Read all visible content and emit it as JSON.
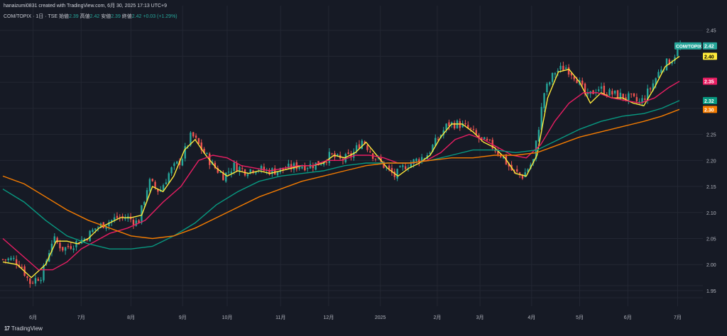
{
  "header": {
    "created_note": "hanaizumi0831 created with TradingView.com, 6月 30, 2025 17:13 UTC+9",
    "symbol_line": "COM/TOPIX · 1日 · TSE",
    "open_label": "始値",
    "open_value": "2.39",
    "high_label": "高値",
    "high_value": "2.42",
    "low_label": "安値",
    "low_value": "2.39",
    "close_label": "終値",
    "close_value": "2.42",
    "change": "+0.03 (+1.29%)"
  },
  "footer": {
    "brand": "TradingView",
    "brand_mark": "17"
  },
  "colors": {
    "background": "#161a25",
    "grid": "#232733",
    "up_candle": "#26a69a",
    "down_candle": "#ef5350",
    "ma_short": "#ffeb3b",
    "ma_medium": "#e91e63",
    "ma_long": "#089981",
    "ma_longest": "#f57c00",
    "price_tag": "#26a69a"
  },
  "chart_data": {
    "type": "candlestick",
    "title": "",
    "ylim": [
      1.92,
      2.47
    ],
    "y_ticks": [
      "2.45",
      "2.40",
      "2.35",
      "2.30",
      "2.25",
      "2.20",
      "2.15",
      "2.10",
      "2.05",
      "2.00",
      "1.95"
    ],
    "y_tick_values": [
      2.45,
      2.4,
      2.35,
      2.3,
      2.25,
      2.2,
      2.15,
      2.1,
      2.05,
      2.0,
      1.95
    ],
    "x_ticks": [
      "6月",
      "7月",
      "8月",
      "9月",
      "10月",
      "11月",
      "12月",
      "2025",
      "2月",
      "3月",
      "4月",
      "5月",
      "6月",
      "7月"
    ],
    "x_tick_days": [
      17,
      44,
      72,
      101,
      126,
      156,
      183,
      212,
      244,
      268,
      297,
      324,
      351,
      379
    ],
    "total_days": 382,
    "close_path": [
      [
        0,
        2.01
      ],
      [
        6,
        2.01
      ],
      [
        10,
        2.0
      ],
      [
        15,
        1.965
      ],
      [
        22,
        1.98
      ],
      [
        28,
        2.05
      ],
      [
        34,
        2.03
      ],
      [
        40,
        2.04
      ],
      [
        46,
        2.05
      ],
      [
        52,
        2.07
      ],
      [
        58,
        2.08
      ],
      [
        64,
        2.09
      ],
      [
        70,
        2.09
      ],
      [
        76,
        2.08
      ],
      [
        82,
        2.16
      ],
      [
        88,
        2.14
      ],
      [
        94,
        2.18
      ],
      [
        100,
        2.2
      ],
      [
        106,
        2.25
      ],
      [
        112,
        2.22
      ],
      [
        118,
        2.19
      ],
      [
        124,
        2.17
      ],
      [
        130,
        2.19
      ],
      [
        136,
        2.18
      ],
      [
        142,
        2.185
      ],
      [
        148,
        2.18
      ],
      [
        154,
        2.18
      ],
      [
        160,
        2.185
      ],
      [
        166,
        2.19
      ],
      [
        172,
        2.19
      ],
      [
        178,
        2.195
      ],
      [
        184,
        2.21
      ],
      [
        190,
        2.2
      ],
      [
        196,
        2.21
      ],
      [
        202,
        2.24
      ],
      [
        208,
        2.21
      ],
      [
        214,
        2.19
      ],
      [
        220,
        2.17
      ],
      [
        226,
        2.19
      ],
      [
        232,
        2.2
      ],
      [
        238,
        2.21
      ],
      [
        244,
        2.24
      ],
      [
        250,
        2.27
      ],
      [
        256,
        2.27
      ],
      [
        262,
        2.26
      ],
      [
        268,
        2.24
      ],
      [
        274,
        2.23
      ],
      [
        280,
        2.21
      ],
      [
        286,
        2.18
      ],
      [
        292,
        2.17
      ],
      [
        298,
        2.2
      ],
      [
        304,
        2.33
      ],
      [
        310,
        2.37
      ],
      [
        316,
        2.38
      ],
      [
        322,
        2.36
      ],
      [
        328,
        2.32
      ],
      [
        334,
        2.34
      ],
      [
        340,
        2.33
      ],
      [
        346,
        2.325
      ],
      [
        352,
        2.32
      ],
      [
        358,
        2.31
      ],
      [
        364,
        2.34
      ],
      [
        370,
        2.38
      ],
      [
        376,
        2.395
      ],
      [
        380,
        2.42
      ]
    ],
    "series": [
      {
        "name": "",
        "key": "ma_short",
        "color": "#ffeb3b",
        "points": [
          [
            0,
            2.005
          ],
          [
            8,
            2.0
          ],
          [
            16,
            1.975
          ],
          [
            24,
            2.0
          ],
          [
            30,
            2.045
          ],
          [
            36,
            2.045
          ],
          [
            42,
            2.04
          ],
          [
            48,
            2.05
          ],
          [
            54,
            2.07
          ],
          [
            60,
            2.08
          ],
          [
            66,
            2.09
          ],
          [
            72,
            2.09
          ],
          [
            78,
            2.095
          ],
          [
            84,
            2.15
          ],
          [
            90,
            2.14
          ],
          [
            96,
            2.17
          ],
          [
            102,
            2.22
          ],
          [
            108,
            2.24
          ],
          [
            114,
            2.21
          ],
          [
            120,
            2.185
          ],
          [
            126,
            2.17
          ],
          [
            132,
            2.18
          ],
          [
            138,
            2.175
          ],
          [
            144,
            2.18
          ],
          [
            150,
            2.175
          ],
          [
            156,
            2.18
          ],
          [
            162,
            2.185
          ],
          [
            168,
            2.19
          ],
          [
            174,
            2.19
          ],
          [
            180,
            2.195
          ],
          [
            186,
            2.21
          ],
          [
            192,
            2.205
          ],
          [
            198,
            2.215
          ],
          [
            204,
            2.235
          ],
          [
            210,
            2.21
          ],
          [
            216,
            2.185
          ],
          [
            222,
            2.17
          ],
          [
            228,
            2.185
          ],
          [
            234,
            2.195
          ],
          [
            240,
            2.21
          ],
          [
            246,
            2.245
          ],
          [
            252,
            2.27
          ],
          [
            258,
            2.27
          ],
          [
            264,
            2.255
          ],
          [
            270,
            2.235
          ],
          [
            276,
            2.225
          ],
          [
            282,
            2.205
          ],
          [
            288,
            2.175
          ],
          [
            294,
            2.17
          ],
          [
            300,
            2.21
          ],
          [
            306,
            2.32
          ],
          [
            312,
            2.37
          ],
          [
            318,
            2.375
          ],
          [
            324,
            2.35
          ],
          [
            330,
            2.31
          ],
          [
            336,
            2.33
          ],
          [
            342,
            2.32
          ],
          [
            348,
            2.32
          ],
          [
            354,
            2.31
          ],
          [
            360,
            2.305
          ],
          [
            366,
            2.34
          ],
          [
            372,
            2.38
          ],
          [
            378,
            2.395
          ],
          [
            380,
            2.4
          ]
        ]
      },
      {
        "name": "",
        "key": "ma_medium",
        "color": "#e91e63",
        "points": [
          [
            0,
            2.05
          ],
          [
            10,
            2.02
          ],
          [
            20,
            1.99
          ],
          [
            28,
            1.99
          ],
          [
            36,
            2.005
          ],
          [
            44,
            2.03
          ],
          [
            52,
            2.045
          ],
          [
            60,
            2.06
          ],
          [
            70,
            2.07
          ],
          [
            80,
            2.085
          ],
          [
            90,
            2.12
          ],
          [
            100,
            2.15
          ],
          [
            110,
            2.2
          ],
          [
            118,
            2.21
          ],
          [
            126,
            2.205
          ],
          [
            134,
            2.19
          ],
          [
            142,
            2.185
          ],
          [
            150,
            2.18
          ],
          [
            158,
            2.185
          ],
          [
            166,
            2.19
          ],
          [
            174,
            2.19
          ],
          [
            182,
            2.2
          ],
          [
            190,
            2.2
          ],
          [
            198,
            2.21
          ],
          [
            206,
            2.21
          ],
          [
            214,
            2.205
          ],
          [
            222,
            2.195
          ],
          [
            230,
            2.195
          ],
          [
            238,
            2.2
          ],
          [
            246,
            2.215
          ],
          [
            254,
            2.24
          ],
          [
            262,
            2.25
          ],
          [
            270,
            2.24
          ],
          [
            278,
            2.225
          ],
          [
            286,
            2.21
          ],
          [
            294,
            2.205
          ],
          [
            302,
            2.23
          ],
          [
            310,
            2.275
          ],
          [
            318,
            2.31
          ],
          [
            326,
            2.33
          ],
          [
            334,
            2.33
          ],
          [
            342,
            2.32
          ],
          [
            350,
            2.315
          ],
          [
            358,
            2.31
          ],
          [
            366,
            2.32
          ],
          [
            374,
            2.34
          ],
          [
            380,
            2.352
          ]
        ]
      },
      {
        "name": "",
        "key": "ma_long",
        "color": "#089981",
        "points": [
          [
            0,
            2.145
          ],
          [
            12,
            2.12
          ],
          [
            24,
            2.085
          ],
          [
            36,
            2.055
          ],
          [
            48,
            2.04
          ],
          [
            60,
            2.03
          ],
          [
            72,
            2.03
          ],
          [
            84,
            2.035
          ],
          [
            96,
            2.055
          ],
          [
            108,
            2.08
          ],
          [
            120,
            2.115
          ],
          [
            132,
            2.14
          ],
          [
            144,
            2.16
          ],
          [
            156,
            2.17
          ],
          [
            168,
            2.175
          ],
          [
            180,
            2.18
          ],
          [
            192,
            2.19
          ],
          [
            204,
            2.195
          ],
          [
            216,
            2.195
          ],
          [
            228,
            2.195
          ],
          [
            240,
            2.2
          ],
          [
            252,
            2.21
          ],
          [
            264,
            2.22
          ],
          [
            276,
            2.22
          ],
          [
            288,
            2.215
          ],
          [
            300,
            2.22
          ],
          [
            312,
            2.24
          ],
          [
            324,
            2.26
          ],
          [
            336,
            2.275
          ],
          [
            348,
            2.285
          ],
          [
            360,
            2.29
          ],
          [
            370,
            2.3
          ],
          [
            380,
            2.315
          ]
        ]
      },
      {
        "name": "",
        "key": "ma_longest",
        "color": "#f57c00",
        "points": [
          [
            0,
            2.17
          ],
          [
            12,
            2.155
          ],
          [
            24,
            2.13
          ],
          [
            36,
            2.105
          ],
          [
            48,
            2.085
          ],
          [
            60,
            2.07
          ],
          [
            72,
            2.055
          ],
          [
            84,
            2.05
          ],
          [
            96,
            2.055
          ],
          [
            108,
            2.07
          ],
          [
            120,
            2.09
          ],
          [
            132,
            2.11
          ],
          [
            144,
            2.13
          ],
          [
            156,
            2.145
          ],
          [
            168,
            2.16
          ],
          [
            180,
            2.17
          ],
          [
            192,
            2.18
          ],
          [
            204,
            2.19
          ],
          [
            216,
            2.195
          ],
          [
            228,
            2.195
          ],
          [
            240,
            2.2
          ],
          [
            252,
            2.205
          ],
          [
            264,
            2.205
          ],
          [
            276,
            2.21
          ],
          [
            288,
            2.21
          ],
          [
            300,
            2.215
          ],
          [
            312,
            2.23
          ],
          [
            324,
            2.245
          ],
          [
            336,
            2.255
          ],
          [
            348,
            2.265
          ],
          [
            360,
            2.275
          ],
          [
            370,
            2.285
          ],
          [
            380,
            2.298
          ]
        ]
      }
    ],
    "price_tags": [
      {
        "label": "COM/TOPIX",
        "value": "2.42",
        "y": 2.42,
        "bg": "#26a69a",
        "fg": "#ffffff",
        "show_label": true
      },
      {
        "label": "",
        "value": "2.40",
        "y": 2.4,
        "bg": "#ffeb3b",
        "fg": "#000000",
        "show_label": false
      },
      {
        "label": "",
        "value": "2.35",
        "y": 2.352,
        "bg": "#e91e63",
        "fg": "#ffffff",
        "show_label": false
      },
      {
        "label": "",
        "value": "2.32",
        "y": 2.315,
        "bg": "#089981",
        "fg": "#ffffff",
        "show_label": false
      },
      {
        "label": "",
        "value": "2.30",
        "y": 2.298,
        "bg": "#f57c00",
        "fg": "#ffffff",
        "show_label": false
      }
    ]
  }
}
